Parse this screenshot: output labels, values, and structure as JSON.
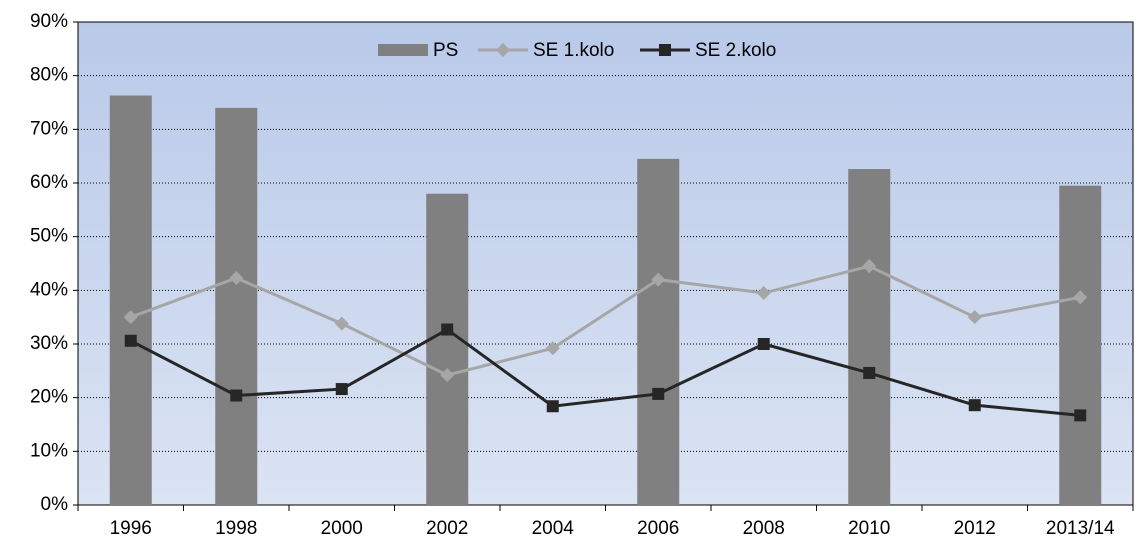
{
  "chart_data": {
    "type": "bar-line",
    "categories": [
      "1996",
      "1998",
      "2000",
      "2002",
      "2004",
      "2006",
      "2008",
      "2010",
      "2012",
      "2013/14"
    ],
    "series": [
      {
        "name": "PS",
        "type": "bar",
        "color": "#808080",
        "values": [
          76.3,
          74,
          null,
          58,
          null,
          64.5,
          null,
          62.6,
          null,
          59.5
        ]
      },
      {
        "name": "SE 1.kolo",
        "type": "line",
        "marker": "diamond",
        "color": "#a6a6a6",
        "values": [
          35,
          42.3,
          33.8,
          24.2,
          29.2,
          42,
          39.5,
          44.5,
          35,
          38.7
        ]
      },
      {
        "name": "SE 2.kolo",
        "type": "line",
        "marker": "square",
        "color": "#262626",
        "values": [
          30.6,
          20.4,
          21.6,
          32.7,
          18.4,
          20.7,
          30,
          24.6,
          18.6,
          16.7
        ]
      }
    ],
    "ylim": [
      0,
      90
    ],
    "yticks": [
      {
        "value": 0,
        "label": "0%"
      },
      {
        "value": 10,
        "label": "10%"
      },
      {
        "value": 20,
        "label": "20%"
      },
      {
        "value": 30,
        "label": "30%"
      },
      {
        "value": 40,
        "label": "40%"
      },
      {
        "value": 50,
        "label": "50%"
      },
      {
        "value": 60,
        "label": "60%"
      },
      {
        "value": 70,
        "label": "70%"
      },
      {
        "value": 80,
        "label": "80%"
      },
      {
        "value": 90,
        "label": "90%"
      }
    ],
    "grid": true,
    "legend": "top"
  }
}
